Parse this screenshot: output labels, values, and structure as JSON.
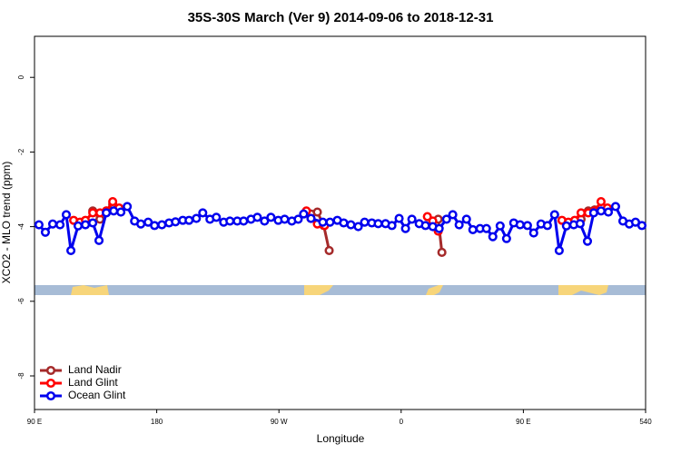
{
  "chart_data": {
    "type": "line",
    "title": "35S-30S March (Ver 9)   2014-09-06 to 2018-12-31",
    "xlabel": "Longitude",
    "ylabel": "XCO2 - MLO trend (ppm)",
    "xlim": [
      90,
      540
    ],
    "ylim": [
      -8.9,
      1.1
    ],
    "xticks": [
      {
        "value": 90,
        "label": "90 E"
      },
      180,
      {
        "value": 270,
        "label": "90 W"
      },
      {
        "value": 360,
        "label": "0"
      },
      {
        "value": 450,
        "label": "90 E"
      },
      540
    ],
    "yticks": [
      0,
      -2,
      -4,
      -6,
      -8
    ],
    "legend": "bottom-left",
    "series": [
      {
        "name": "Land Nadir",
        "color": "#a52a2a",
        "x": [
          132.9,
          138.2,
          142.9,
          147.6,
          null,
          293.6,
          298.3,
          303.0,
          307.0,
          null,
          387.3,
          390.0,
          null,
          492.5,
          497.8,
          502.5
        ],
        "values": [
          -3.58,
          -3.8,
          -3.58,
          -3.4,
          null,
          -3.66,
          -3.61,
          -3.97,
          -4.64,
          null,
          -3.8,
          -4.69,
          null,
          -3.8,
          -3.58,
          -3.55
        ]
      },
      {
        "name": "Land Glint",
        "color": "#ff0000",
        "x": [
          118.8,
          123.5,
          127.5,
          132.9,
          138.2,
          142.9,
          147.6,
          152.3,
          null,
          290.2,
          293.6,
          298.3,
          303.6,
          null,
          379.3,
          383.3,
          387.3,
          null,
          478.4,
          483.1,
          487.8,
          492.5,
          497.8,
          502.5,
          507.2,
          511.9
        ],
        "values": [
          -3.83,
          -3.88,
          -3.83,
          -3.63,
          -3.63,
          -3.58,
          -3.33,
          -3.5,
          null,
          -3.58,
          -3.78,
          -3.93,
          -3.97,
          null,
          -3.73,
          -3.85,
          -4.12,
          null,
          -3.83,
          -3.88,
          -3.83,
          -3.63,
          -3.63,
          -3.58,
          -3.33,
          -3.5
        ]
      },
      {
        "name": "Ocean Glint",
        "color": "#0000ee",
        "x": [
          93.3,
          98.0,
          103.4,
          108.8,
          113.4,
          116.8,
          122.1,
          127.5,
          132.9,
          137.5,
          142.9,
          148.3,
          153.6,
          158.3,
          163.7,
          168.3,
          173.7,
          178.4,
          183.8,
          189.1,
          193.8,
          199.2,
          203.8,
          209.2,
          213.9,
          219.2,
          223.9,
          229.3,
          233.9,
          239.3,
          244.0,
          249.4,
          254.1,
          259.4,
          264.1,
          269.5,
          274.2,
          279.5,
          284.2,
          288.2,
          293.6,
          302.3,
          307.6,
          313.0,
          317.7,
          323.0,
          328.4,
          333.1,
          338.4,
          343.1,
          348.5,
          353.2,
          358.5,
          363.2,
          367.9,
          373.3,
          377.9,
          383.3,
          388.0,
          393.4,
          398.0,
          402.7,
          408.1,
          412.8,
          418.1,
          422.8,
          427.5,
          432.9,
          437.6,
          442.9,
          447.6,
          453.0,
          457.6,
          463.0,
          467.7,
          473.0,
          476.4,
          481.7,
          487.1,
          491.8,
          497.2,
          501.8,
          507.2,
          512.6,
          517.9,
          523.3,
          528.0,
          532.6,
          537.3
        ],
        "values": [
          -3.95,
          -4.15,
          -3.93,
          -3.95,
          -3.68,
          -4.64,
          -3.98,
          -3.95,
          -3.9,
          -4.37,
          -3.63,
          -3.58,
          -3.61,
          -3.46,
          -3.85,
          -3.93,
          -3.88,
          -3.97,
          -3.95,
          -3.9,
          -3.87,
          -3.83,
          -3.83,
          -3.78,
          -3.63,
          -3.8,
          -3.75,
          -3.88,
          -3.85,
          -3.85,
          -3.85,
          -3.8,
          -3.75,
          -3.85,
          -3.75,
          -3.83,
          -3.8,
          -3.85,
          -3.8,
          -3.66,
          -3.78,
          -3.88,
          -3.88,
          -3.83,
          -3.9,
          -3.95,
          -4.0,
          -3.88,
          -3.9,
          -3.92,
          -3.92,
          -3.97,
          -3.78,
          -4.05,
          -3.8,
          -3.92,
          -3.97,
          -4.0,
          -4.05,
          -3.8,
          -3.68,
          -3.95,
          -3.8,
          -4.08,
          -4.05,
          -4.05,
          -4.27,
          -3.98,
          -4.32,
          -3.9,
          -3.95,
          -3.97,
          -4.17,
          -3.93,
          -3.97,
          -3.68,
          -4.64,
          -3.98,
          -3.95,
          -3.92,
          -4.39,
          -3.63,
          -3.58,
          -3.61,
          -3.46,
          -3.85,
          -3.93,
          -3.88,
          -3.97
        ]
      }
    ]
  }
}
